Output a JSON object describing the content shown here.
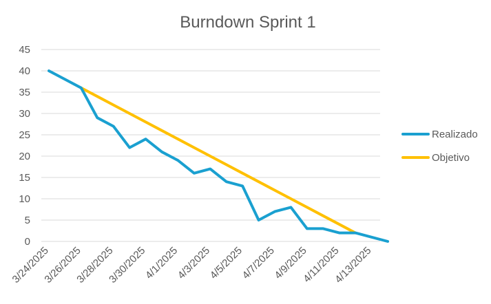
{
  "chart_data": {
    "type": "line",
    "title": "Burndown Sprint 1",
    "xlabel": "",
    "ylabel": "",
    "ylim": [
      0,
      45
    ],
    "yticks": [
      0,
      5,
      10,
      15,
      20,
      25,
      30,
      35,
      40,
      45
    ],
    "grid": true,
    "legend_position": "right",
    "x": [
      "3/24/2025",
      "3/25/2025",
      "3/26/2025",
      "3/27/2025",
      "3/28/2025",
      "3/29/2025",
      "3/30/2025",
      "3/31/2025",
      "4/1/2025",
      "4/2/2025",
      "4/3/2025",
      "4/4/2025",
      "4/5/2025",
      "4/6/2025",
      "4/7/2025",
      "4/8/2025",
      "4/9/2025",
      "4/10/2025",
      "4/11/2025",
      "4/12/2025",
      "4/13/2025",
      "4/14/2025"
    ],
    "xtick_labels": [
      "3/24/2025",
      "3/26/2025",
      "3/28/2025",
      "3/30/2025",
      "4/1/2025",
      "4/3/2025",
      "4/5/2025",
      "4/7/2025",
      "4/9/2025",
      "4/11/2025",
      "4/13/2025"
    ],
    "series": [
      {
        "name": "Realizado",
        "color": "#1aa0d0",
        "values": [
          40,
          38,
          36,
          29,
          27,
          22,
          24,
          21,
          19,
          16,
          17,
          14,
          13,
          5,
          7,
          8,
          3,
          3,
          2,
          2,
          1,
          0
        ]
      },
      {
        "name": "Objetivo",
        "color": "#ffc000",
        "values": [
          null,
          null,
          36,
          34,
          32,
          30,
          28,
          26,
          24,
          22,
          20,
          18,
          16,
          14,
          12,
          10,
          8,
          6,
          4,
          2,
          null,
          null
        ]
      }
    ]
  }
}
